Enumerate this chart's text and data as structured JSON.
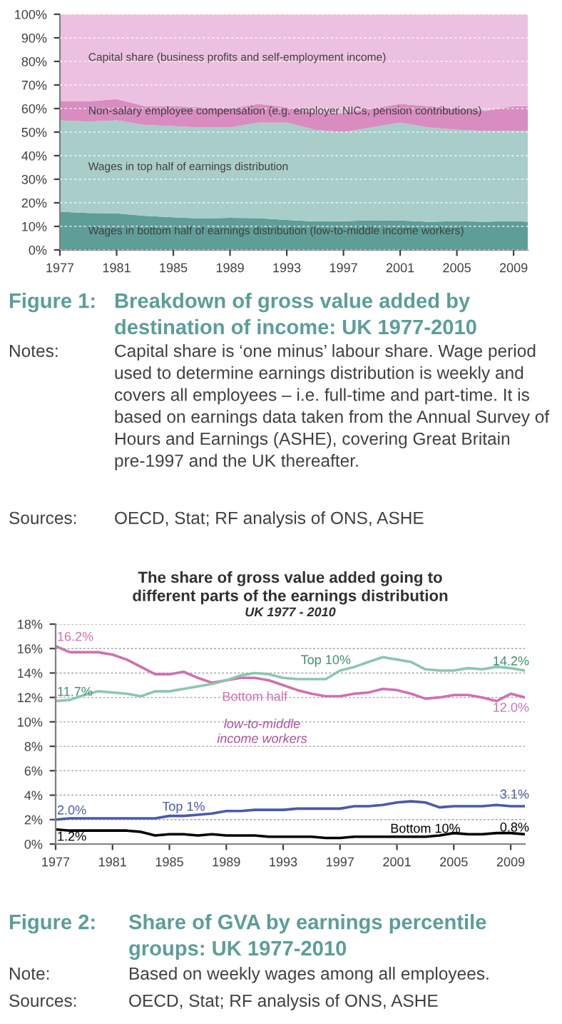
{
  "chart_data": [
    {
      "type": "area",
      "stacked": true,
      "x": [
        1977,
        1979,
        1981,
        1983,
        1985,
        1987,
        1989,
        1991,
        1993,
        1995,
        1997,
        1999,
        2001,
        2003,
        2005,
        2007,
        2009,
        2010
      ],
      "series": [
        {
          "name": "Wages in bottom half of earnings distribution (low-to-middle income workers)",
          "color": "#5f9e98",
          "values": [
            16.2,
            15.7,
            15.5,
            14.5,
            13.9,
            13.3,
            13.6,
            13.5,
            12.7,
            12.1,
            12.2,
            12.6,
            12.5,
            12.0,
            12.2,
            12.0,
            12.3,
            12.0
          ]
        },
        {
          "name": "Wages in top half of earnings distribution",
          "color": "#a9cdc9",
          "values": [
            38.8,
            38.8,
            39.5,
            38.5,
            38.6,
            38.7,
            38.4,
            40.5,
            41.3,
            38.9,
            37.8,
            39.4,
            41.5,
            40.0,
            38.8,
            38.5,
            38.2,
            38.5
          ]
        },
        {
          "name": "Non-salary employee compensation (e.g. employer NICs, pension contributions)",
          "color": "#d98cc0",
          "values": [
            8.0,
            8.5,
            9.0,
            8.0,
            8.5,
            8.5,
            8.0,
            8.0,
            6.5,
            7.0,
            8.0,
            8.0,
            8.0,
            9.0,
            9.0,
            8.5,
            10.5,
            10.5
          ]
        },
        {
          "name": "Capital share (business profits and self-employment income)",
          "color": "#ecc0e0",
          "values": [
            37.0,
            37.0,
            36.0,
            39.0,
            39.0,
            39.5,
            40.0,
            38.0,
            39.5,
            42.0,
            42.0,
            40.0,
            38.0,
            39.0,
            40.0,
            41.0,
            39.0,
            39.0
          ]
        }
      ],
      "xlim": [
        1977,
        2010
      ],
      "xticks": [
        1977,
        1981,
        1985,
        1989,
        1993,
        1997,
        2001,
        2005,
        2009
      ],
      "ylim": [
        0,
        100
      ],
      "yticks": [
        {
          "value": 0,
          "label": "0%"
        },
        {
          "value": 10,
          "label": "10%"
        },
        {
          "value": 20,
          "label": "20%"
        },
        {
          "value": 30,
          "label": "30%"
        },
        {
          "value": 40,
          "label": "40%"
        },
        {
          "value": 50,
          "label": "50%"
        },
        {
          "value": 60,
          "label": "60%"
        },
        {
          "value": 70,
          "label": "70%"
        },
        {
          "value": 80,
          "label": "80%"
        },
        {
          "value": 90,
          "label": "90%"
        },
        {
          "value": 100,
          "label": "100%"
        }
      ],
      "grid": "y",
      "legend": false,
      "annotations": [
        "Figure 1:",
        "Breakdown of gross value added by destination of income: UK 1977-2010",
        "Notes:",
        "Capital share is ‘one minus’ labour share. Wage period used to determine earnings distribution is weekly and covers all employees – i.e. full-time and part-time. It is based on earnings data taken from the Annual Survey of Hours and Earnings (ASHE), covering Great Britain pre-1997 and the UK thereafter.",
        "Sources:",
        "OECD, Stat; RF analysis of ONS, ASHE"
      ]
    },
    {
      "type": "line",
      "title": "The share of gross value added going to\ndifferent parts of the earnings distribution",
      "subtitle": "UK 1977 - 2010",
      "x": [
        1977,
        1978,
        1979,
        1980,
        1981,
        1982,
        1983,
        1984,
        1985,
        1986,
        1987,
        1988,
        1989,
        1990,
        1991,
        1992,
        1993,
        1994,
        1995,
        1996,
        1997,
        1998,
        1999,
        2000,
        2001,
        2002,
        2003,
        2004,
        2005,
        2006,
        2007,
        2008,
        2009,
        2010
      ],
      "series": [
        {
          "name": "Bottom half",
          "color": "#d070b0",
          "values": [
            16.2,
            15.7,
            15.7,
            15.7,
            15.5,
            15.1,
            14.5,
            13.9,
            13.9,
            14.1,
            13.6,
            13.2,
            13.4,
            13.6,
            13.6,
            13.4,
            13.0,
            12.6,
            12.3,
            12.1,
            12.1,
            12.3,
            12.4,
            12.7,
            12.6,
            12.3,
            11.9,
            12.0,
            12.2,
            12.2,
            12.0,
            11.7,
            12.3,
            12.0
          ],
          "value_labels": [
            "16.2%",
            null,
            null,
            null,
            null,
            null,
            null,
            null,
            null,
            null,
            null,
            null,
            null,
            null,
            null,
            null,
            null,
            null,
            null,
            null,
            null,
            null,
            null,
            null,
            null,
            null,
            null,
            null,
            null,
            null,
            null,
            null,
            null,
            "12.0%"
          ]
        },
        {
          "name": "Top 10%",
          "color": "#8cc7ae",
          "values": [
            11.7,
            11.8,
            12.2,
            12.5,
            12.4,
            12.3,
            12.1,
            12.5,
            12.5,
            12.7,
            null,
            13.1,
            13.4,
            13.8,
            14.0,
            13.9,
            13.6,
            13.5,
            13.5,
            13.5,
            14.2,
            14.5,
            14.9,
            15.3,
            15.1,
            14.9,
            14.3,
            14.2,
            14.2,
            14.4,
            14.3,
            14.5,
            14.4,
            14.2
          ],
          "value_labels": [
            "11.7%",
            null,
            null,
            null,
            null,
            null,
            null,
            null,
            null,
            null,
            null,
            null,
            null,
            null,
            null,
            null,
            null,
            null,
            null,
            null,
            null,
            null,
            null,
            null,
            null,
            null,
            null,
            null,
            null,
            null,
            null,
            null,
            null,
            "14.2%"
          ]
        },
        {
          "name": "Top 1%",
          "color": "#4a5aa8",
          "values": [
            2.0,
            2.1,
            2.1,
            2.1,
            2.1,
            2.1,
            2.1,
            2.1,
            2.3,
            2.3,
            2.4,
            2.5,
            2.7,
            2.7,
            2.8,
            2.8,
            2.8,
            2.9,
            2.9,
            2.9,
            2.9,
            3.1,
            3.1,
            3.2,
            3.4,
            3.5,
            3.4,
            3.0,
            3.1,
            3.1,
            3.1,
            3.2,
            3.1,
            3.1
          ],
          "value_labels": [
            "2.0%",
            null,
            null,
            null,
            null,
            null,
            null,
            null,
            null,
            null,
            null,
            null,
            null,
            null,
            null,
            null,
            null,
            null,
            null,
            null,
            null,
            null,
            null,
            null,
            null,
            null,
            null,
            null,
            null,
            null,
            null,
            null,
            null,
            "3.1%"
          ]
        },
        {
          "name": "Bottom 10%",
          "color": "#000000",
          "values": [
            1.2,
            1.1,
            1.1,
            1.1,
            1.1,
            1.1,
            1.0,
            0.7,
            0.8,
            0.8,
            0.7,
            0.8,
            0.7,
            0.7,
            0.7,
            0.6,
            0.6,
            0.6,
            0.6,
            0.5,
            0.5,
            0.6,
            0.6,
            0.6,
            0.6,
            0.6,
            0.6,
            0.7,
            0.9,
            0.8,
            0.8,
            0.9,
            0.9,
            0.8
          ],
          "value_labels": [
            "1.2%",
            null,
            null,
            null,
            null,
            null,
            null,
            null,
            null,
            null,
            null,
            null,
            null,
            null,
            null,
            null,
            null,
            null,
            null,
            null,
            null,
            null,
            null,
            null,
            null,
            null,
            null,
            null,
            null,
            null,
            null,
            null,
            null,
            "0.8%"
          ]
        }
      ],
      "xlim": [
        1977,
        2010
      ],
      "xticks": [
        1977,
        1981,
        1985,
        1989,
        1993,
        1997,
        2001,
        2005,
        2009
      ],
      "ylim": [
        0,
        18
      ],
      "yticks": [
        {
          "value": 0,
          "label": "0%"
        },
        {
          "value": 2,
          "label": "2%"
        },
        {
          "value": 4,
          "label": "4%"
        },
        {
          "value": 6,
          "label": "6%"
        },
        {
          "value": 8,
          "label": "8%"
        },
        {
          "value": 10,
          "label": "10%"
        },
        {
          "value": 12,
          "label": "12%"
        },
        {
          "value": 14,
          "label": "14%"
        },
        {
          "value": 16,
          "label": "16%"
        },
        {
          "value": 18,
          "label": "18%"
        }
      ],
      "grid": "y",
      "legend": false,
      "marker": "none",
      "line_style": "solid",
      "annotations": [
        "low-to-middle\nincome workers",
        "Figure 2:",
        "Share of GVA by earnings percentile groups: UK 1977-2010",
        "Note:",
        "Based on weekly wages among all employees.",
        "Sources:",
        "OECD, Stat; RF analysis of ONS, ASHE"
      ]
    }
  ]
}
